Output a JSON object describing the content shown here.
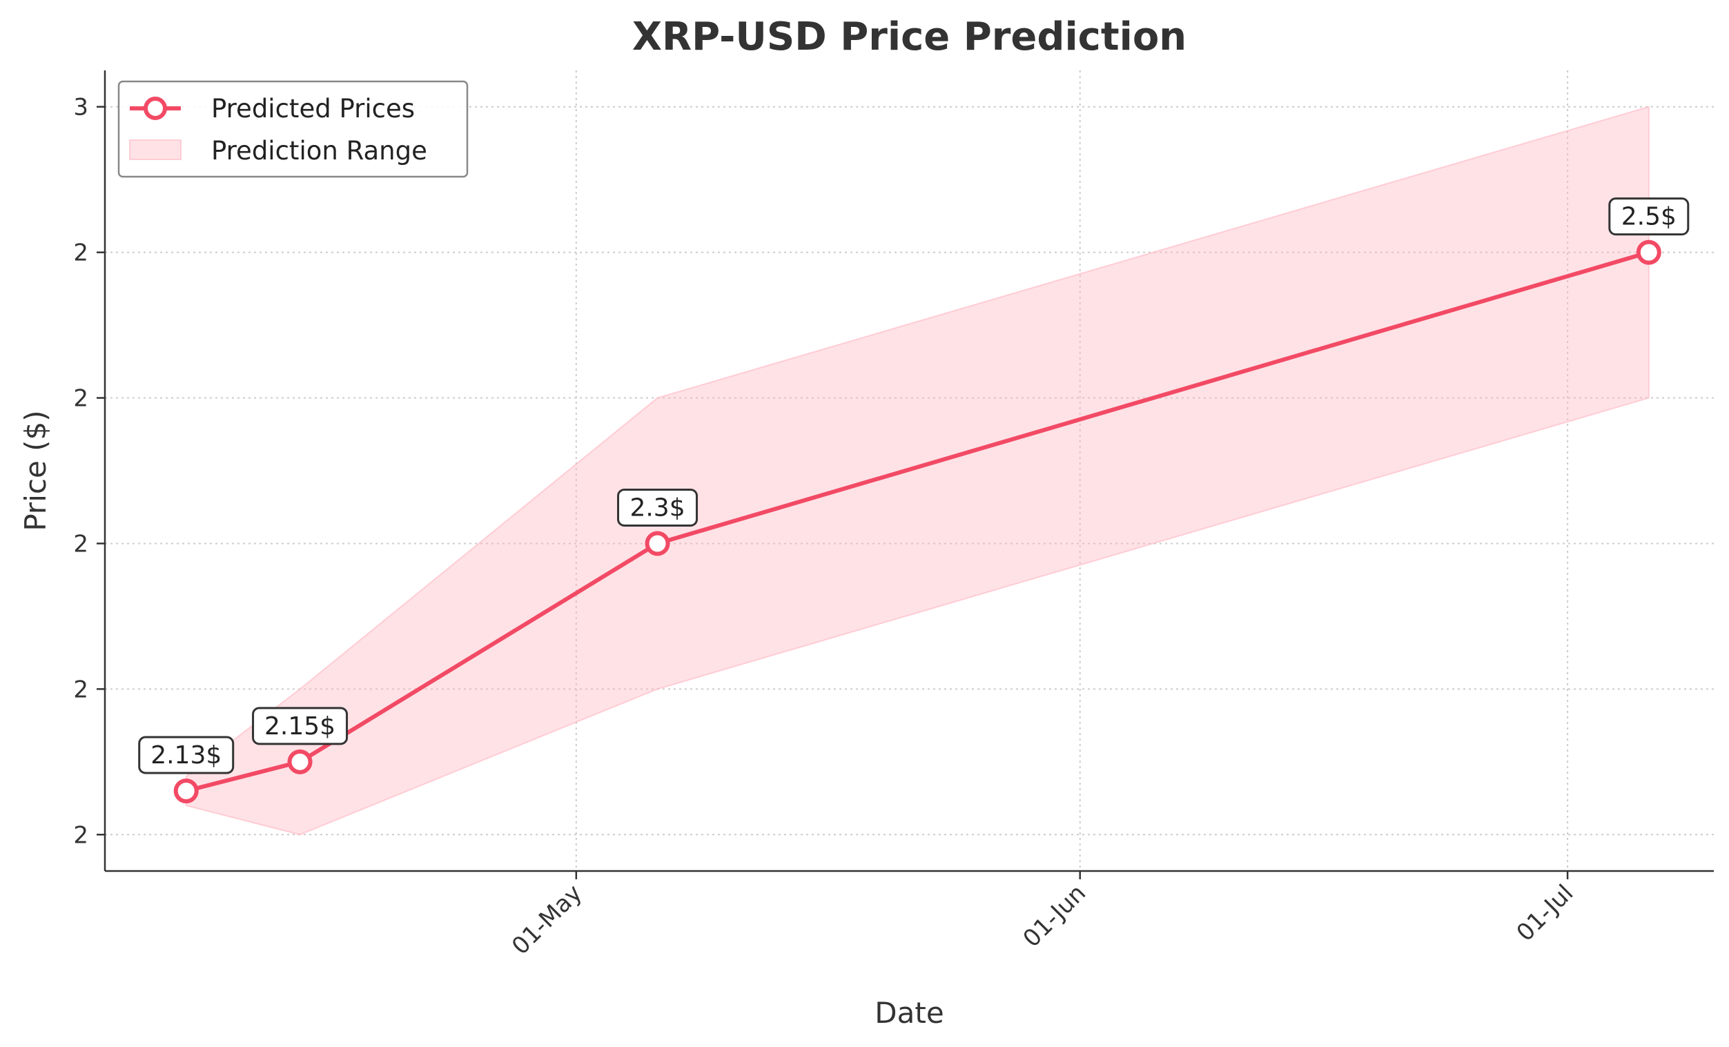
{
  "chart_data": {
    "type": "line",
    "title": "XRP-USD Price Prediction",
    "xlabel": "Date",
    "ylabel": "Price ($)",
    "x_tick_labels": [
      "01-May",
      "01-Jun",
      "01-Jul"
    ],
    "x_tick_dates": [
      "2025-05-01",
      "2025-06-01",
      "2025-07-01"
    ],
    "y_tick_labels": [
      "2",
      "2",
      "2",
      "2",
      "2",
      "3"
    ],
    "y_tick_values": [
      2.1,
      2.2,
      2.3,
      2.4,
      2.5,
      2.6
    ],
    "ylim": [
      2.075,
      2.625
    ],
    "xlim": [
      "2025-04-02",
      "2025-07-10"
    ],
    "grid": true,
    "legend_position": "top-left",
    "series": [
      {
        "name": "Predicted Prices",
        "type": "line",
        "color": "#f24a65",
        "points": [
          {
            "x": "2025-04-07",
            "y": 2.13
          },
          {
            "x": "2025-04-14",
            "y": 2.15
          },
          {
            "x": "2025-05-06",
            "y": 2.3
          },
          {
            "x": "2025-07-06",
            "y": 2.5
          }
        ]
      },
      {
        "name": "Prediction Range",
        "type": "area",
        "color": "#ffb6c1",
        "points": [
          {
            "x": "2025-04-07",
            "low": 2.12,
            "high": 2.14
          },
          {
            "x": "2025-04-14",
            "low": 2.1,
            "high": 2.2
          },
          {
            "x": "2025-05-06",
            "low": 2.2,
            "high": 2.4
          },
          {
            "x": "2025-07-06",
            "low": 2.4,
            "high": 2.6
          }
        ]
      }
    ],
    "annotations": [
      "2.13$",
      "2.15$",
      "2.3$",
      "2.5$"
    ]
  }
}
